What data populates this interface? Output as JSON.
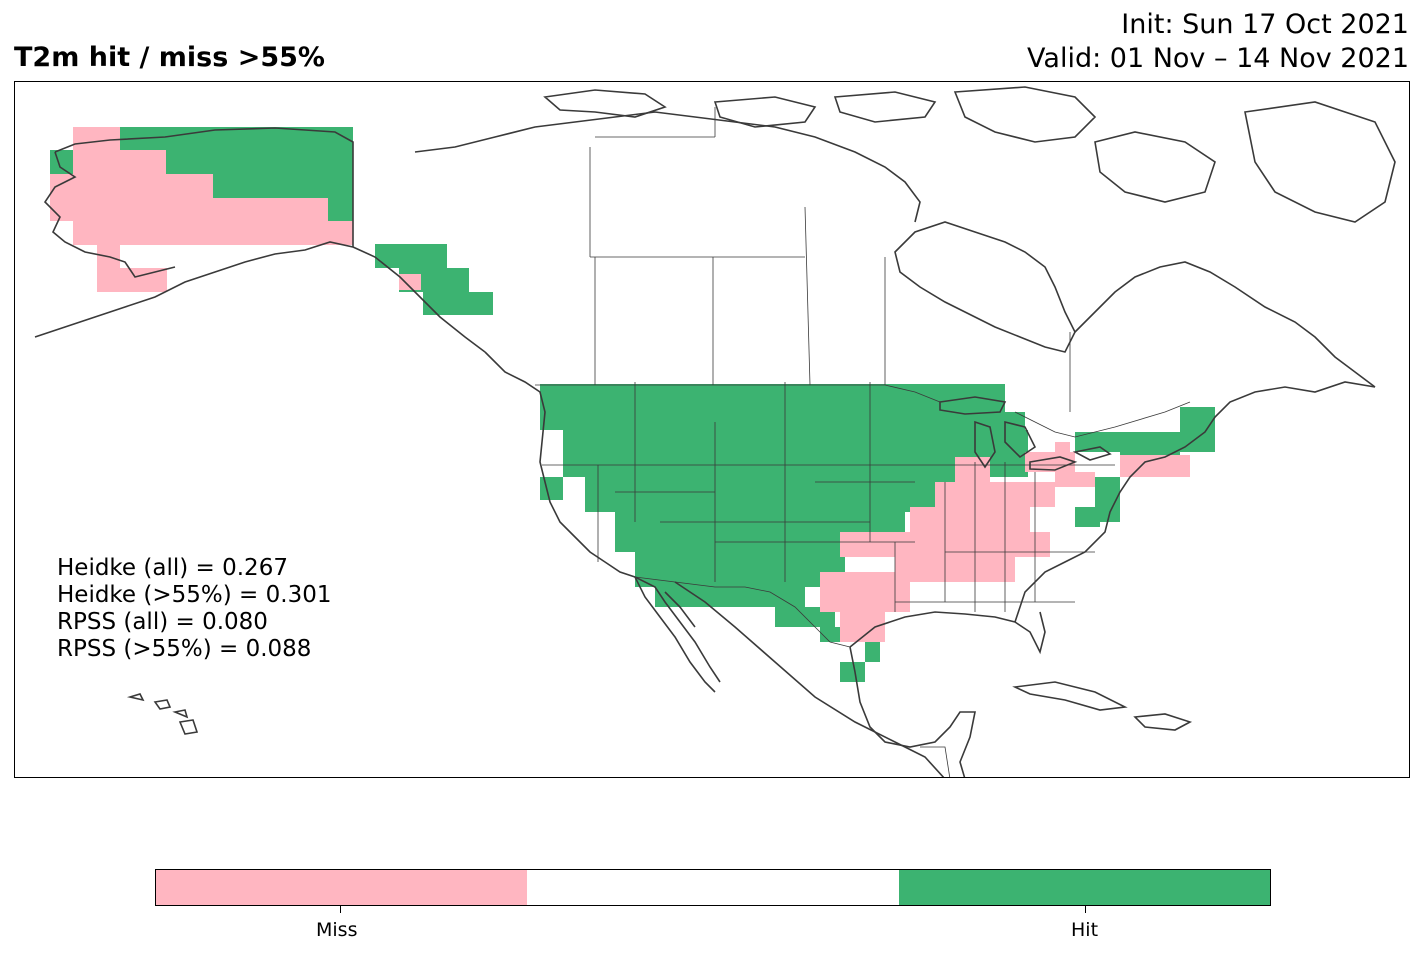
{
  "title": "T2m hit / miss  >55%",
  "init_line": "Init: Sun 17 Oct 2021",
  "valid_line": "Valid: 01 Nov – 14 Nov 2021",
  "stats": {
    "heidke_all": "Heidke (all) = 0.267",
    "heidke_55": "Heidke (>55%) = 0.301",
    "rpss_all": "RPSS (all) = 0.080",
    "rpss_55": "RPSS (>55%) = 0.088"
  },
  "colors": {
    "miss": "#ffb6c1",
    "neutral": "#ffffff",
    "hit": "#3cb371",
    "outline": "#3a3a3a"
  },
  "colorbar": {
    "miss_label": "Miss",
    "hit_label": "Hit"
  }
}
